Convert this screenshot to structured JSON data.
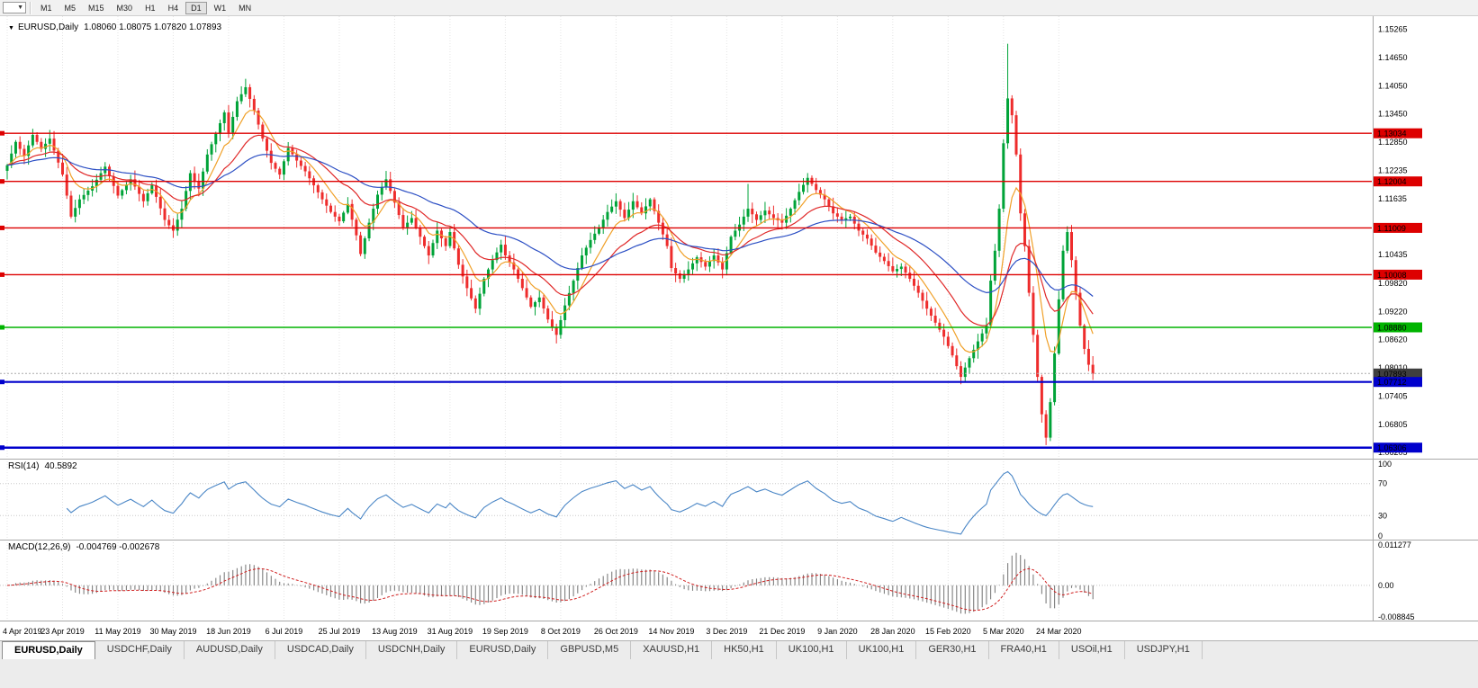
{
  "toolbar": {
    "dropdown_icon": "▼",
    "timeframes": [
      "M1",
      "M5",
      "M15",
      "M30",
      "H1",
      "H4",
      "D1",
      "W1",
      "MN"
    ],
    "active_timeframe": "D1"
  },
  "chart": {
    "collapse_icon": "▼",
    "title": "EURUSD,Daily",
    "open": "1.08060",
    "high": "1.08075",
    "low": "1.07820",
    "close": "1.07893",
    "ohlc_text": "1.08060 1.08075 1.07820 1.07893"
  },
  "chart_data": {
    "type": "candlestick",
    "symbol": "EURUSD",
    "timeframe": "Daily",
    "title": "EURUSD,Daily",
    "candle_count": 256,
    "x_label_step": 13,
    "x_labels": [
      "4 Apr 2019",
      "23 Apr 2019",
      "11 May 2019",
      "30 May 2019",
      "18 Jun 2019",
      "6 Jul 2019",
      "25 Jul 2019",
      "13 Aug 2019",
      "31 Aug 2019",
      "19 Sep 2019",
      "8 Oct 2019",
      "26 Oct 2019",
      "14 Nov 2019",
      "3 Dec 2019",
      "21 Dec 2019",
      "9 Jan 2020",
      "28 Jan 2020",
      "15 Feb 2020",
      "5 Mar 2020",
      "24 Mar 2020"
    ],
    "price_axis": {
      "min": 1.0607,
      "max": 1.1554,
      "ticks": [
        "1.15265",
        "1.14650",
        "1.14050",
        "1.13450",
        "1.12850",
        "1.12235",
        "1.11635",
        "1.11035",
        "1.10435",
        "1.09820",
        "1.09220",
        "1.08620",
        "1.08010",
        "1.07405",
        "1.06805",
        "1.06205"
      ]
    },
    "close_anchors": [
      [
        0,
        1.1235
      ],
      [
        2,
        1.1285
      ],
      [
        4,
        1.1255
      ],
      [
        6,
        1.13
      ],
      [
        8,
        1.127
      ],
      [
        10,
        1.1292
      ],
      [
        13,
        1.1215
      ],
      [
        15,
        1.1125
      ],
      [
        17,
        1.1162
      ],
      [
        20,
        1.119
      ],
      [
        23,
        1.1232
      ],
      [
        26,
        1.117
      ],
      [
        29,
        1.1205
      ],
      [
        32,
        1.1158
      ],
      [
        34,
        1.1192
      ],
      [
        37,
        1.1118
      ],
      [
        39,
        1.1095
      ],
      [
        41,
        1.1142
      ],
      [
        43,
        1.1218
      ],
      [
        45,
        1.1185
      ],
      [
        47,
        1.1258
      ],
      [
        49,
        1.1302
      ],
      [
        51,
        1.1348
      ],
      [
        52,
        1.1305
      ],
      [
        54,
        1.1372
      ],
      [
        56,
        1.1402
      ],
      [
        58,
        1.1352
      ],
      [
        60,
        1.1292
      ],
      [
        62,
        1.124
      ],
      [
        64,
        1.1215
      ],
      [
        66,
        1.1272
      ],
      [
        68,
        1.1245
      ],
      [
        70,
        1.1222
      ],
      [
        72,
        1.1192
      ],
      [
        74,
        1.1162
      ],
      [
        76,
        1.1135
      ],
      [
        78,
        1.1115
      ],
      [
        80,
        1.1152
      ],
      [
        82,
        1.1085
      ],
      [
        83,
        1.1045
      ],
      [
        85,
        1.1112
      ],
      [
        87,
        1.1172
      ],
      [
        89,
        1.1205
      ],
      [
        91,
        1.1155
      ],
      [
        93,
        1.1102
      ],
      [
        95,
        1.1122
      ],
      [
        97,
        1.1082
      ],
      [
        99,
        1.1042
      ],
      [
        101,
        1.1095
      ],
      [
        103,
        1.1062
      ],
      [
        104,
        1.1092
      ],
      [
        106,
        1.1022
      ],
      [
        108,
        1.0972
      ],
      [
        110,
        1.0928
      ],
      [
        112,
        1.0992
      ],
      [
        114,
        1.1032
      ],
      [
        116,
        1.1065
      ],
      [
        117,
        1.1042
      ],
      [
        119,
        1.1012
      ],
      [
        121,
        1.0972
      ],
      [
        123,
        1.0932
      ],
      [
        125,
        1.0952
      ],
      [
        127,
        1.0905
      ],
      [
        129,
        1.0872
      ],
      [
        131,
        1.0935
      ],
      [
        133,
        1.0988
      ],
      [
        135,
        1.1042
      ],
      [
        137,
        1.1075
      ],
      [
        139,
        1.1102
      ],
      [
        141,
        1.1135
      ],
      [
        143,
        1.1158
      ],
      [
        145,
        1.1122
      ],
      [
        147,
        1.1158
      ],
      [
        149,
        1.1132
      ],
      [
        151,
        1.1162
      ],
      [
        153,
        1.1112
      ],
      [
        155,
        1.1062
      ],
      [
        156,
        1.1015
      ],
      [
        158,
        1.0992
      ],
      [
        160,
        1.1012
      ],
      [
        162,
        1.1038
      ],
      [
        164,
        1.1018
      ],
      [
        166,
        1.1042
      ],
      [
        168,
        1.1012
      ],
      [
        170,
        1.1082
      ],
      [
        172,
        1.1108
      ],
      [
        174,
        1.1142
      ],
      [
        176,
        1.1118
      ],
      [
        178,
        1.1138
      ],
      [
        180,
        1.1122
      ],
      [
        182,
        1.1112
      ],
      [
        184,
        1.1142
      ],
      [
        186,
        1.1178
      ],
      [
        188,
        1.1208
      ],
      [
        190,
        1.1182
      ],
      [
        192,
        1.1162
      ],
      [
        194,
        1.1132
      ],
      [
        196,
        1.1118
      ],
      [
        198,
        1.1125
      ],
      [
        200,
        1.1095
      ],
      [
        202,
        1.1078
      ],
      [
        204,
        1.1048
      ],
      [
        206,
        1.103
      ],
      [
        208,
        1.1008
      ],
      [
        210,
        1.1018
      ],
      [
        212,
        1.0992
      ],
      [
        214,
        1.0962
      ],
      [
        216,
        1.0928
      ],
      [
        218,
        1.0898
      ],
      [
        220,
        1.0868
      ],
      [
        222,
        1.0828
      ],
      [
        224,
        1.0782
      ],
      [
        226,
        1.0822
      ],
      [
        228,
        1.0858
      ],
      [
        230,
        1.0892
      ],
      [
        231,
        1.0988
      ],
      [
        232,
        1.1052
      ],
      [
        233,
        1.1142
      ],
      [
        234,
        1.1282
      ],
      [
        235,
        1.1378
      ],
      [
        236,
        1.1342
      ],
      [
        237,
        1.1258
      ],
      [
        238,
        1.1132
      ],
      [
        239,
        1.1062
      ],
      [
        240,
        1.0962
      ],
      [
        241,
        1.0872
      ],
      [
        242,
        1.0782
      ],
      [
        243,
        1.0702
      ],
      [
        244,
        1.0652
      ],
      [
        245,
        1.0728
      ],
      [
        246,
        1.0832
      ],
      [
        247,
        1.0948
      ],
      [
        248,
        1.1052
      ],
      [
        249,
        1.1092
      ],
      [
        250,
        1.1032
      ],
      [
        251,
        1.0962
      ],
      [
        252,
        1.0892
      ],
      [
        253,
        1.0842
      ],
      [
        254,
        1.0808
      ],
      [
        255,
        1.0789
      ]
    ],
    "special_wicks": {
      "56": {
        "high": 1.142
      },
      "174": {
        "high": 1.1195
      },
      "235": {
        "high": 1.1495
      },
      "244": {
        "low": 1.0636
      }
    },
    "moving_averages": [
      {
        "name": "fast",
        "period": 8,
        "color": "#f0a028"
      },
      {
        "name": "medium",
        "period": 20,
        "color": "#e02828"
      },
      {
        "name": "slow",
        "period": 45,
        "color": "#2c4fc4"
      }
    ],
    "hlines": [
      {
        "value": 1.13034,
        "label": "1.13034",
        "color": "#dd0000",
        "width": 1.4
      },
      {
        "value": 1.12004,
        "label": "1.12004",
        "color": "#dd0000",
        "width": 1.4
      },
      {
        "value": 1.11009,
        "label": "1.11009",
        "color": "#dd0000",
        "width": 1.4
      },
      {
        "value": 1.10008,
        "label": "1.10008",
        "color": "#dd0000",
        "width": 1.4
      },
      {
        "value": 1.0888,
        "label": "1.08880",
        "color": "#00b400",
        "width": 1.6
      },
      {
        "value": 1.07712,
        "label": "1.07712",
        "color": "#0000cc",
        "width": 2.2
      },
      {
        "value": 1.06306,
        "label": "1.06306",
        "color": "#0000cc",
        "width": 2.6
      }
    ],
    "bid": {
      "value": 1.07893,
      "label": "1.07893",
      "tag_color": "#3f3f3f",
      "line_color": "#aaaaaa"
    },
    "indicators": {
      "rsi": {
        "label": "RSI(14)",
        "value": "40.5892",
        "period": 14,
        "levels": [
          70,
          30
        ],
        "range": [
          0,
          100
        ],
        "axis_ticks": [
          "100",
          "70",
          "30",
          "0"
        ],
        "color": "#4a86c6"
      },
      "macd": {
        "label": "MACD(12,26,9)",
        "values_text": "-0.004769 -0.002678",
        "fast": 12,
        "slow": 26,
        "signal": 9,
        "scale": [
          -0.008845,
          0.011277
        ],
        "axis_ticks": [
          "0.011277",
          "0.00",
          "-0.008845"
        ],
        "histogram_color": "#7f7f7f",
        "signal_color": "#d02020"
      }
    },
    "colors": {
      "background": "#ffffff",
      "up": "#00a338",
      "down": "#ee2c2c",
      "grid": "#e4e4e4",
      "separator": "#a8a8a8",
      "axis_text": "#000000"
    }
  },
  "tabs": {
    "items": [
      "EURUSD,Daily",
      "USDCHF,Daily",
      "AUDUSD,Daily",
      "USDCAD,Daily",
      "USDCNH,Daily",
      "EURUSD,Daily",
      "GBPUSD,M5",
      "XAUUSD,H1",
      "HK50,H1",
      "UK100,H1",
      "UK100,H1",
      "GER30,H1",
      "FRA40,H1",
      "USOil,H1",
      "USDJPY,H1"
    ],
    "active_index": 0
  }
}
